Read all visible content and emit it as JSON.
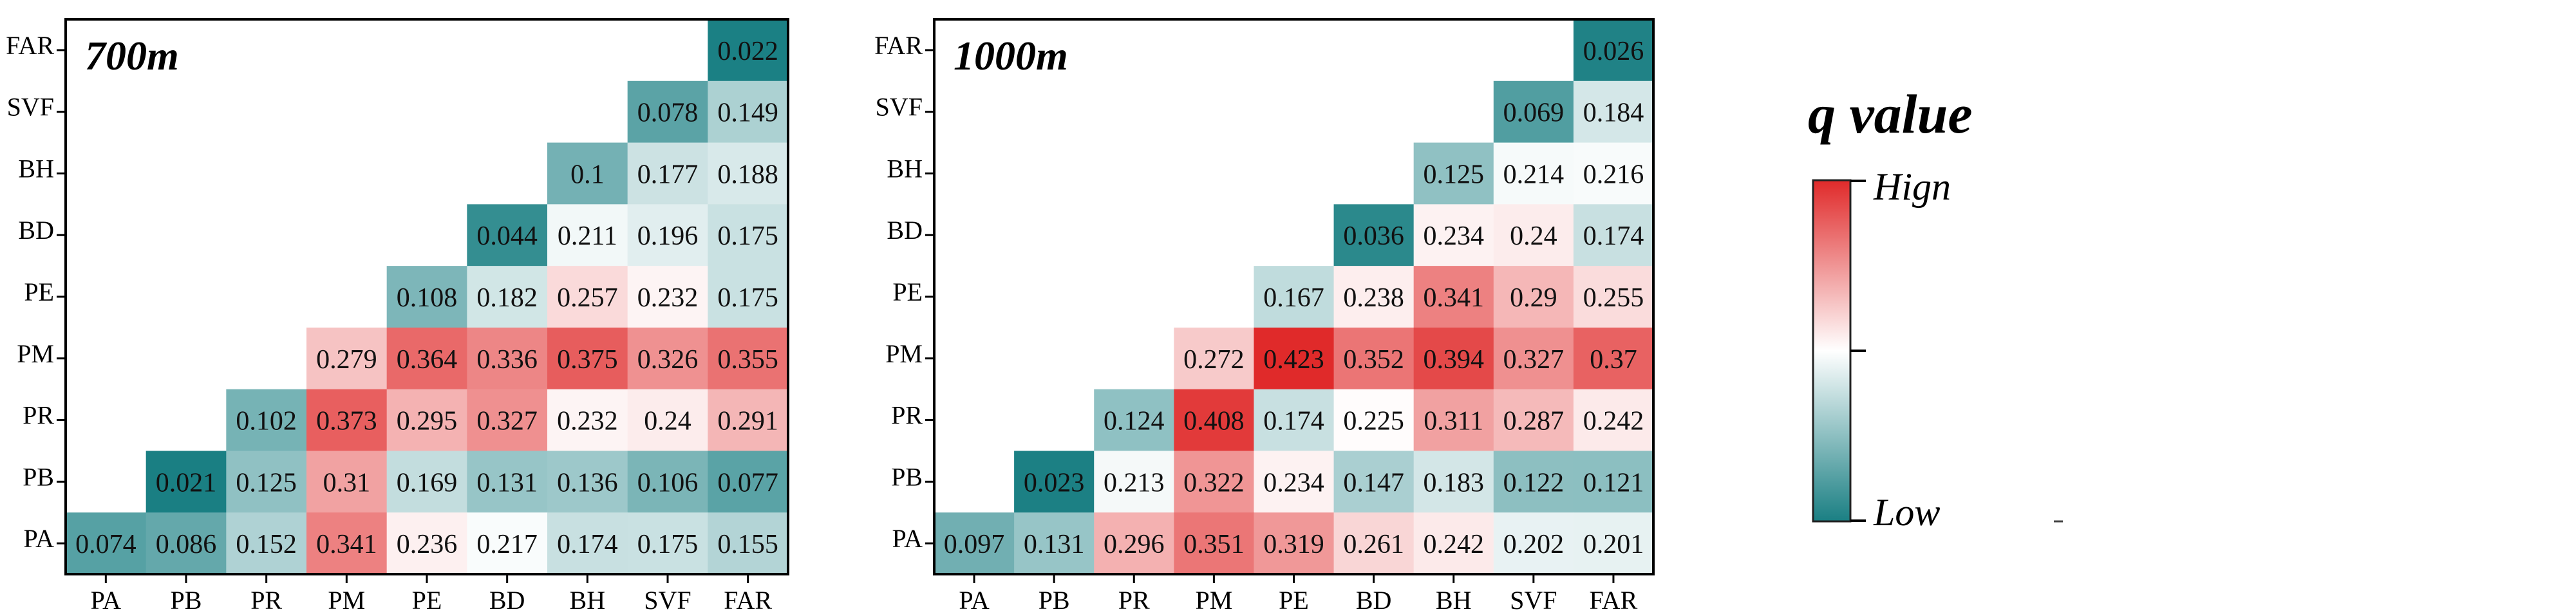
{
  "chart_data": [
    {
      "type": "heatmap",
      "title": "700m",
      "xlabel": "",
      "ylabel": "",
      "x_labels": [
        "PA",
        "PB",
        "PR",
        "PM",
        "PE",
        "BD",
        "BH",
        "SVF",
        "FAR"
      ],
      "y_labels": [
        "FAR",
        "SVF",
        "BH",
        "BD",
        "PE",
        "PM",
        "PR",
        "PB",
        "PA"
      ],
      "values": [
        [
          null,
          null,
          null,
          null,
          null,
          null,
          null,
          null,
          "0.022"
        ],
        [
          null,
          null,
          null,
          null,
          null,
          null,
          null,
          "0.078",
          "0.149"
        ],
        [
          null,
          null,
          null,
          null,
          null,
          null,
          "0.1",
          "0.177",
          "0.188"
        ],
        [
          null,
          null,
          null,
          null,
          null,
          "0.044",
          "0.211",
          "0.196",
          "0.175"
        ],
        [
          null,
          null,
          null,
          null,
          "0.108",
          "0.182",
          "0.257",
          "0.232",
          "0.175"
        ],
        [
          null,
          null,
          null,
          "0.279",
          "0.364",
          "0.336",
          "0.375",
          "0.326",
          "0.355"
        ],
        [
          null,
          null,
          "0.102",
          "0.373",
          "0.295",
          "0.327",
          "0.232",
          "0.24",
          "0.291"
        ],
        [
          null,
          "0.021",
          "0.125",
          "0.31",
          "0.169",
          "0.131",
          "0.136",
          "0.106",
          "0.077"
        ],
        [
          "0.074",
          "0.086",
          "0.152",
          "0.341",
          "0.236",
          "0.217",
          "0.174",
          "0.175",
          "0.155"
        ]
      ]
    },
    {
      "type": "heatmap",
      "title": "1000m",
      "xlabel": "",
      "ylabel": "",
      "x_labels": [
        "PA",
        "PB",
        "PR",
        "PM",
        "PE",
        "BD",
        "BH",
        "SVF",
        "FAR"
      ],
      "y_labels": [
        "FAR",
        "SVF",
        "BH",
        "BD",
        "PE",
        "PM",
        "PR",
        "PB",
        "PA"
      ],
      "values": [
        [
          null,
          null,
          null,
          null,
          null,
          null,
          null,
          null,
          "0.026"
        ],
        [
          null,
          null,
          null,
          null,
          null,
          null,
          null,
          "0.069",
          "0.184"
        ],
        [
          null,
          null,
          null,
          null,
          null,
          null,
          "0.125",
          "0.214",
          "0.216"
        ],
        [
          null,
          null,
          null,
          null,
          null,
          "0.036",
          "0.234",
          "0.24",
          "0.174"
        ],
        [
          null,
          null,
          null,
          null,
          "0.167",
          "0.238",
          "0.341",
          "0.29",
          "0.255"
        ],
        [
          null,
          null,
          null,
          "0.272",
          "0.423",
          "0.352",
          "0.394",
          "0.327",
          "0.37"
        ],
        [
          null,
          null,
          "0.124",
          "0.408",
          "0.174",
          "0.225",
          "0.311",
          "0.287",
          "0.242"
        ],
        [
          null,
          "0.023",
          "0.213",
          "0.322",
          "0.234",
          "0.147",
          "0.183",
          "0.122",
          "0.121"
        ],
        [
          "0.097",
          "0.131",
          "0.296",
          "0.351",
          "0.319",
          "0.261",
          "0.242",
          "0.202",
          "0.201"
        ]
      ]
    }
  ],
  "legend": {
    "title": "q value",
    "high_label": "Hign",
    "low_label": "Low",
    "min": 0.021,
    "max": 0.423,
    "colors": {
      "low": "#1a7f83",
      "mid": "#ffffff",
      "high": "#e02a2a"
    }
  }
}
